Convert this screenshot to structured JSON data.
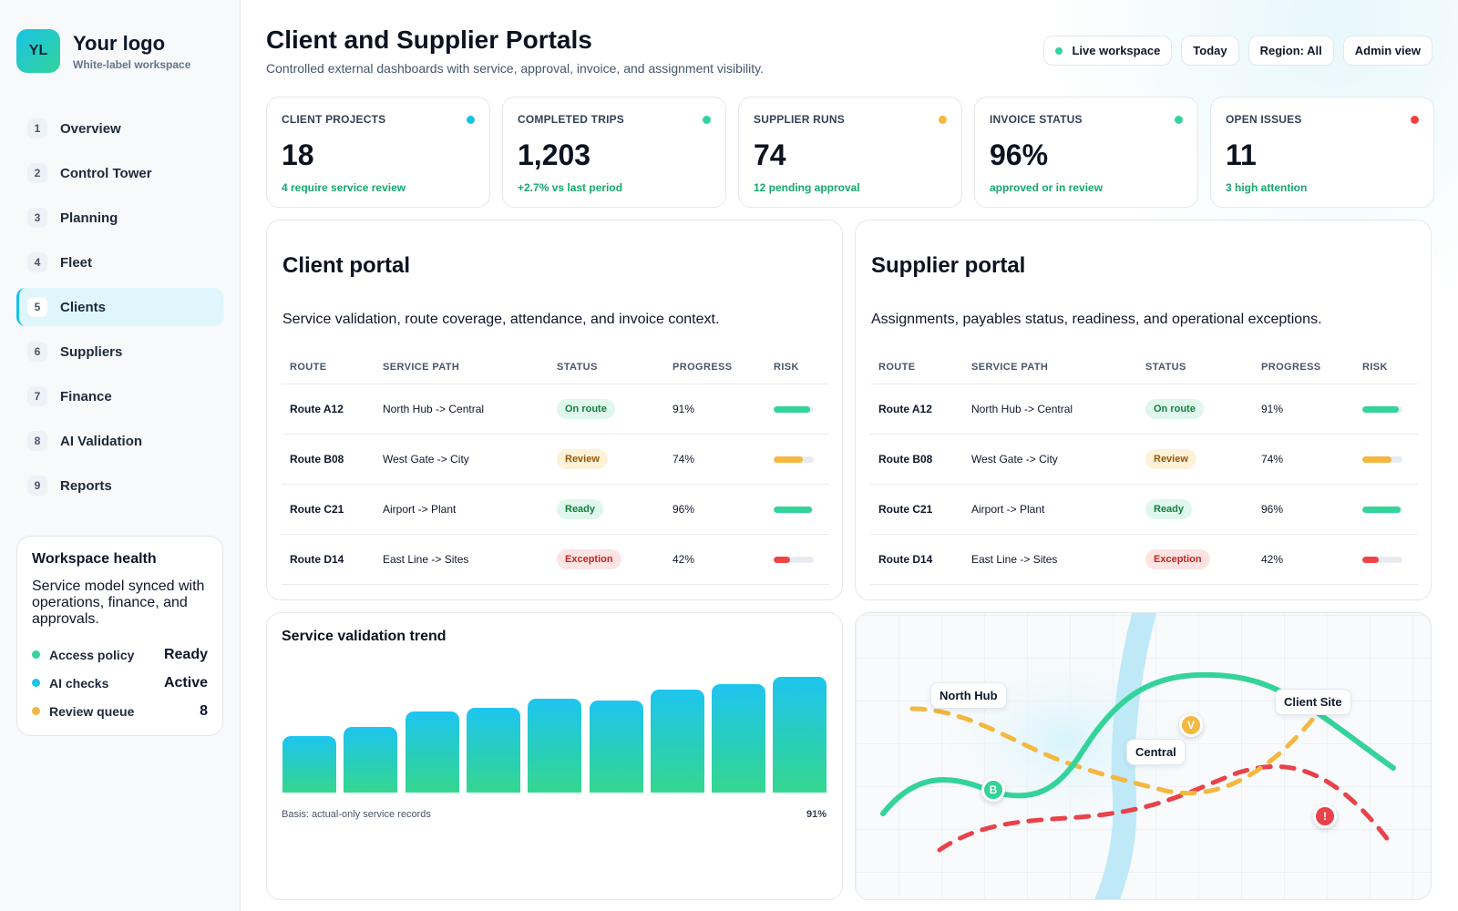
{
  "brand": {
    "badge": "YL",
    "title": "Your logo",
    "subtitle": "White-label workspace"
  },
  "nav": [
    {
      "num": "1",
      "label": "Overview"
    },
    {
      "num": "2",
      "label": "Control Tower"
    },
    {
      "num": "3",
      "label": "Planning"
    },
    {
      "num": "4",
      "label": "Fleet"
    },
    {
      "num": "5",
      "label": "Clients",
      "active": true
    },
    {
      "num": "6",
      "label": "Suppliers"
    },
    {
      "num": "7",
      "label": "Finance"
    },
    {
      "num": "8",
      "label": "AI Validation"
    },
    {
      "num": "9",
      "label": "Reports"
    }
  ],
  "health": {
    "title": "Workspace health",
    "text": "Service model synced with operations, finance, and approvals.",
    "rows": [
      {
        "label": "Access policy",
        "value": "Ready",
        "color": "#34d399"
      },
      {
        "label": "AI checks",
        "value": "Active",
        "color": "#19c3e6"
      },
      {
        "label": "Review queue",
        "value": "8",
        "color": "#f4b740"
      }
    ]
  },
  "header": {
    "title": "Client and Supplier Portals",
    "subtitle": "Controlled external dashboards with service, approval, invoice, and assignment visibility.",
    "pills": {
      "live": "Live workspace",
      "today": "Today",
      "region": "Region: All",
      "admin": "Admin view"
    }
  },
  "kpis": [
    {
      "label": "CLIENT PROJECTS",
      "value": "18",
      "note": "4 require service review",
      "color": "#19c3e6"
    },
    {
      "label": "COMPLETED TRIPS",
      "value": "1,203",
      "note": "+2.7% vs last period",
      "color": "#34d399"
    },
    {
      "label": "SUPPLIER RUNS",
      "value": "74",
      "note": "12 pending approval",
      "color": "#f4b740"
    },
    {
      "label": "INVOICE STATUS",
      "value": "96%",
      "note": "approved or in review",
      "color": "#34d399"
    },
    {
      "label": "OPEN ISSUES",
      "value": "11",
      "note": "3 high attention",
      "color": "#ef4444"
    }
  ],
  "columns": {
    "route": "ROUTE",
    "path": "SERVICE PATH",
    "status": "STATUS",
    "progress": "PROGRESS",
    "risk": "RISK"
  },
  "client_portal": {
    "title": "Client portal",
    "description": "Service validation, route coverage, attendance, and invoice context.",
    "rows": [
      {
        "route": "Route A12",
        "path": "North Hub -> Central",
        "status": "On route",
        "status_key": "on_route",
        "progress": "91%",
        "risk": 0.9,
        "risk_color": "#34d399"
      },
      {
        "route": "Route B08",
        "path": "West Gate -> City",
        "status": "Review",
        "status_key": "review",
        "progress": "74%",
        "risk": 0.72,
        "risk_color": "#f4b740"
      },
      {
        "route": "Route C21",
        "path": "Airport -> Plant",
        "status": "Ready",
        "status_key": "ready",
        "progress": "96%",
        "risk": 0.95,
        "risk_color": "#34d399"
      },
      {
        "route": "Route D14",
        "path": "East Line -> Sites",
        "status": "Exception",
        "status_key": "exception",
        "progress": "42%",
        "risk": 0.42,
        "risk_color": "#ef4444"
      }
    ]
  },
  "supplier_portal": {
    "title": "Supplier portal",
    "description": "Assignments, payables status, readiness, and operational exceptions.",
    "rows": [
      {
        "route": "Route A12",
        "path": "North Hub -> Central",
        "status": "On route",
        "status_key": "on_route",
        "progress": "91%",
        "risk": 0.9,
        "risk_color": "#34d399"
      },
      {
        "route": "Route B08",
        "path": "West Gate -> City",
        "status": "Review",
        "status_key": "review",
        "progress": "74%",
        "risk": 0.72,
        "risk_color": "#f4b740"
      },
      {
        "route": "Route C21",
        "path": "Airport -> Plant",
        "status": "Ready",
        "status_key": "ready",
        "progress": "96%",
        "risk": 0.95,
        "risk_color": "#34d399"
      },
      {
        "route": "Route D14",
        "path": "East Line -> Sites",
        "status": "Exception",
        "status_key": "exception",
        "progress": "42%",
        "risk": 0.42,
        "risk_color": "#ef4444"
      }
    ]
  },
  "trend": {
    "title": "Service validation trend",
    "basis": "Basis: actual-only service records",
    "latest": "91%",
    "bar_levels": [
      0.47,
      0.55,
      0.68,
      0.71,
      0.79,
      0.77,
      0.86,
      0.91,
      0.97
    ]
  },
  "map": {
    "labels": {
      "north_hub": "North Hub",
      "central": "Central",
      "client_site": "Client Site"
    },
    "markers": {
      "b": "B",
      "v": "V",
      "alert": "!"
    },
    "colors": {
      "green_route": "#34d399",
      "amber_route": "#f4b740",
      "red_route": "#e8424a",
      "river": "#bfe9f7"
    }
  }
}
